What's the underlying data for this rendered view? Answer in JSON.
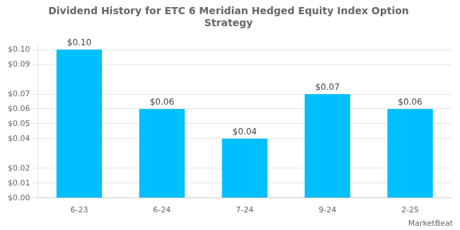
{
  "chart_data": {
    "type": "bar",
    "title": [
      "Dividend History for ETC 6 Meridian Hedged Equity Index Option",
      "Strategy"
    ],
    "categories": [
      "6-23",
      "6-24",
      "7-24",
      "9-24",
      "2-25"
    ],
    "values": [
      0.1,
      0.06,
      0.04,
      0.07,
      0.06
    ],
    "value_labels": [
      "$0.10",
      "$0.06",
      "$0.04",
      "$0.07",
      "$0.06"
    ],
    "data_labels": true,
    "color": "#00BFFF",
    "ylim": [
      0,
      0.105
    ],
    "yticks": [
      {
        "value": 0.0,
        "label": "$0.00"
      },
      {
        "value": 0.01,
        "label": "$0.01"
      },
      {
        "value": 0.02,
        "label": "$0.02"
      },
      {
        "value": 0.04,
        "label": "$0.04"
      },
      {
        "value": 0.05,
        "label": "$0.05"
      },
      {
        "value": 0.06,
        "label": "$0.06"
      },
      {
        "value": 0.07,
        "label": "$0.07"
      },
      {
        "value": 0.09,
        "label": "$0.09"
      },
      {
        "value": 0.1,
        "label": "$0.10"
      }
    ],
    "grid": true,
    "annotation": "MarketBeat"
  }
}
